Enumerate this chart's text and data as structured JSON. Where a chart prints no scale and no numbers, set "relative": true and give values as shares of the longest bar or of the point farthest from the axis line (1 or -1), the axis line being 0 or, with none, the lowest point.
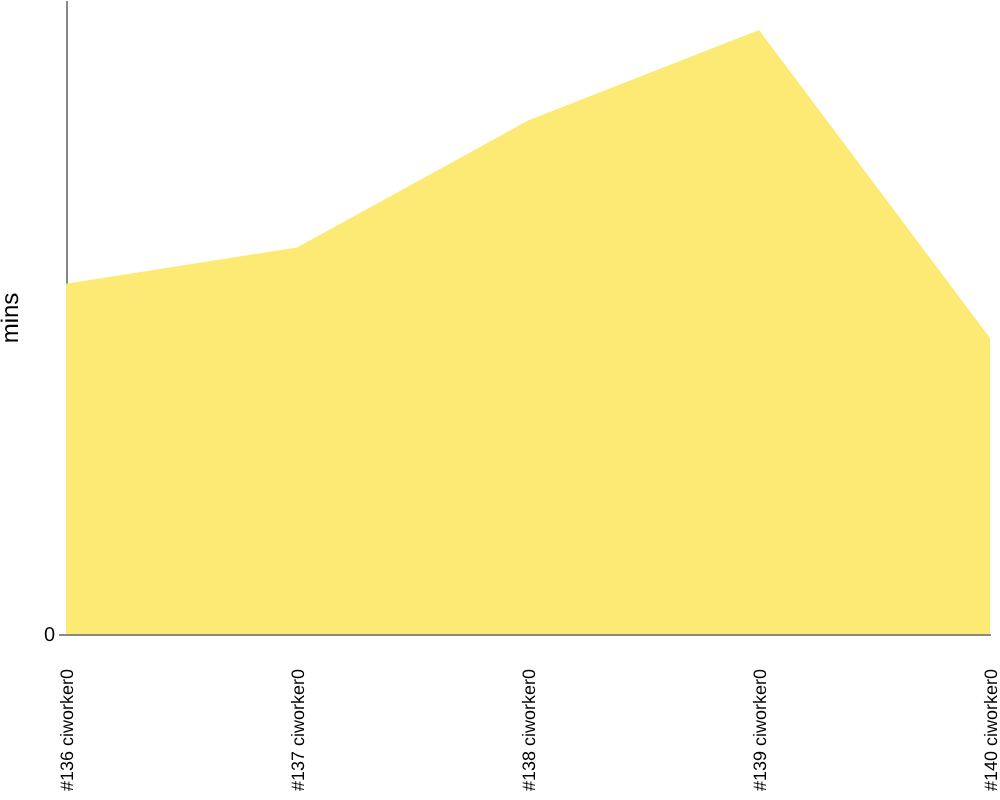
{
  "chart_data": {
    "type": "area",
    "ylabel": "mins",
    "categories": [
      "#136 ciworker0",
      "#137 ciworker0",
      "#138 ciworker0",
      "#139 ciworker0",
      "#140 ciworker0"
    ],
    "values": [
      0.58,
      0.64,
      0.85,
      1,
      0.49
    ],
    "color": "#fcea74",
    "relative": true,
    "annotations": [
      "0"
    ]
  }
}
